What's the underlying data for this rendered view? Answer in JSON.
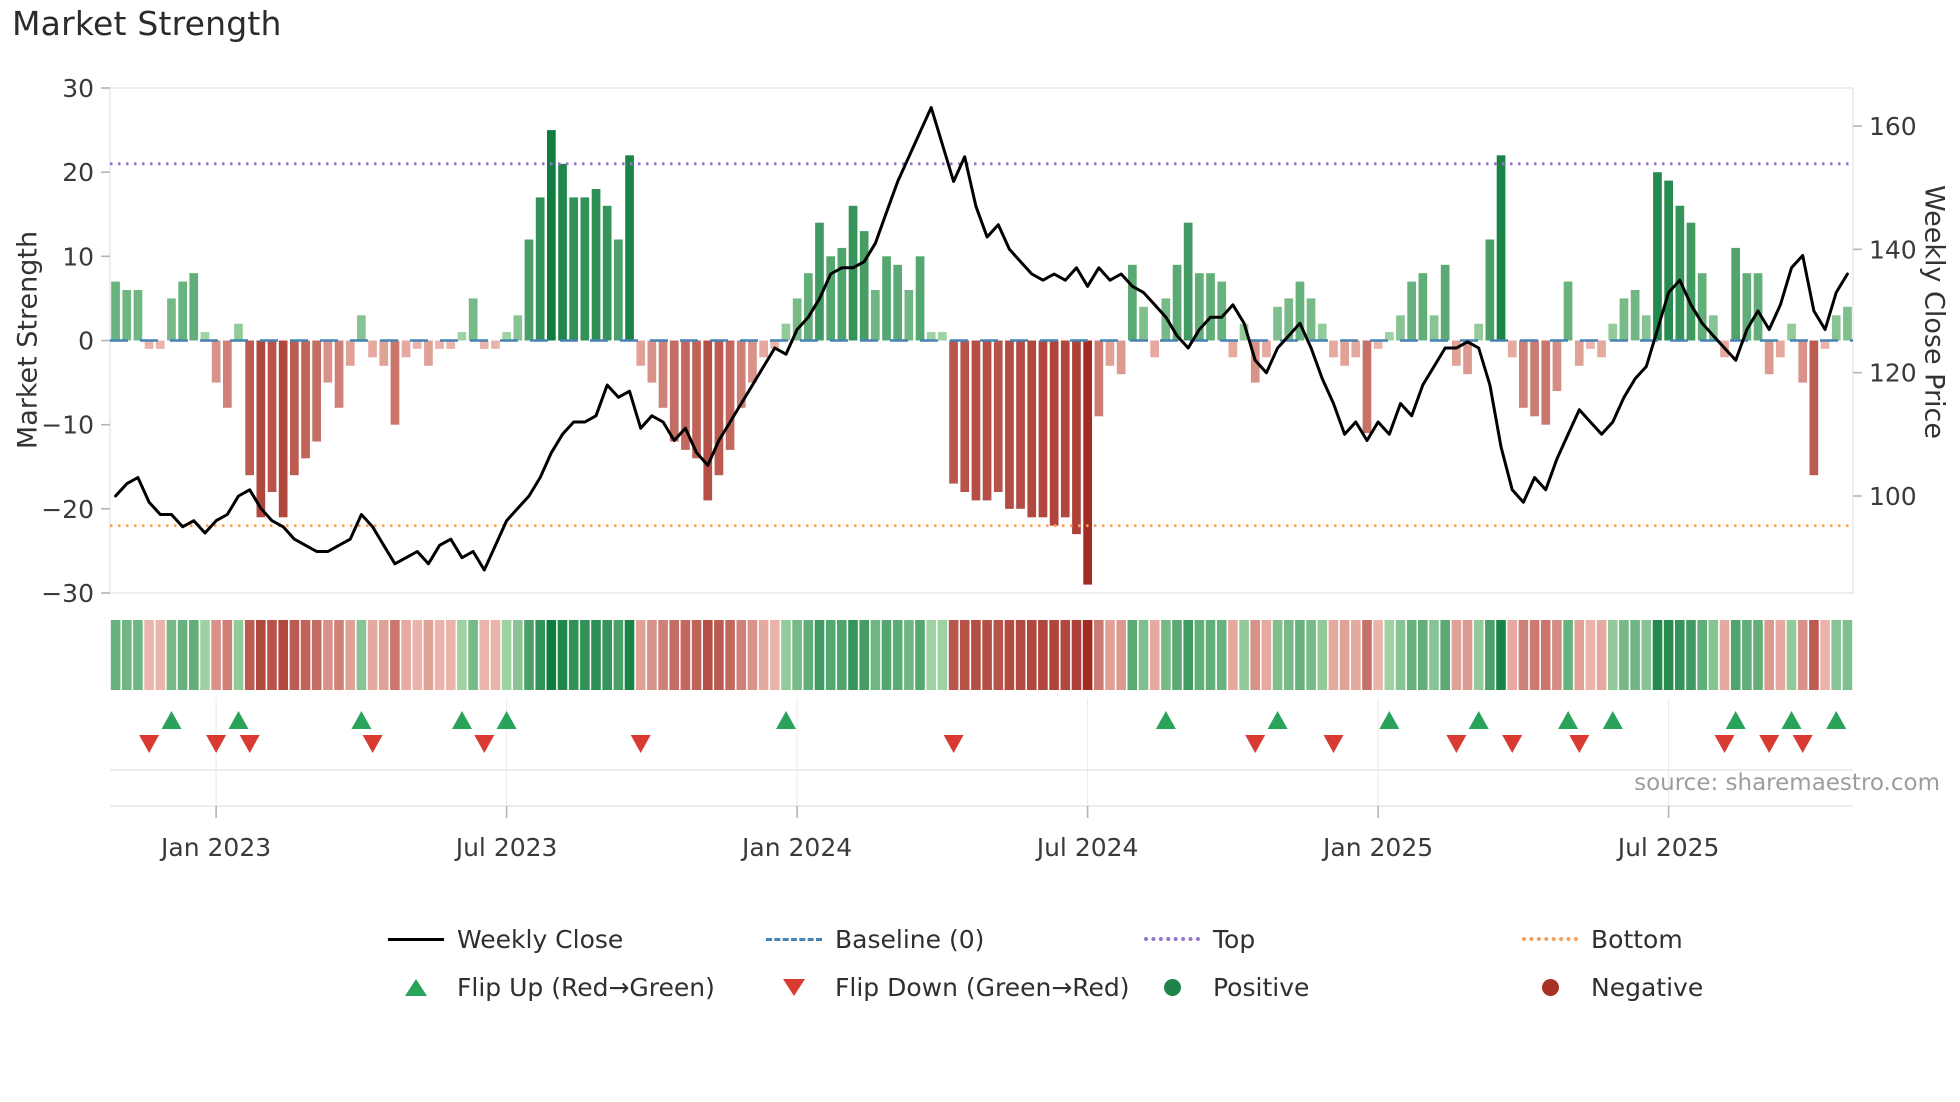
{
  "title": "Market Strength",
  "source": "source: sharemaestro.com",
  "axes": {
    "left_label": "Market Strength",
    "right_label": "Weekly Close Price",
    "left_ticks": [
      {
        "value": 30,
        "label": "30"
      },
      {
        "value": 20,
        "label": "20"
      },
      {
        "value": 10,
        "label": "10"
      },
      {
        "value": 0,
        "label": "0"
      },
      {
        "value": -10,
        "label": "−10"
      },
      {
        "value": -20,
        "label": "−20"
      },
      {
        "value": -30,
        "label": "−30"
      }
    ],
    "right_ticks": [
      {
        "value": 160,
        "label": "160"
      },
      {
        "value": 140,
        "label": "140"
      },
      {
        "value": 120,
        "label": "120"
      },
      {
        "value": 100,
        "label": "100"
      }
    ],
    "x_ticks": [
      {
        "index": 9,
        "label": "Jan 2023"
      },
      {
        "index": 35,
        "label": "Jul 2023"
      },
      {
        "index": 61,
        "label": "Jan 2024"
      },
      {
        "index": 87,
        "label": "Jul 2024"
      },
      {
        "index": 113,
        "label": "Jan 2025"
      },
      {
        "index": 139,
        "label": "Jul 2025"
      }
    ]
  },
  "legend": {
    "items": [
      {
        "label": "Weekly Close"
      },
      {
        "label": "Baseline (0)"
      },
      {
        "label": "Top"
      },
      {
        "label": "Bottom"
      },
      {
        "label": "Flip Up (Red→Green)"
      },
      {
        "label": "Flip Down (Green→Red)"
      },
      {
        "label": "Positive"
      },
      {
        "label": "Negative"
      }
    ]
  },
  "colors": {
    "line": "#000000",
    "baseline": "#4682b4",
    "top": "#9575cd",
    "bottom": "#f5a15b",
    "green_light": "#b7e0b4",
    "green_dark": "#0e7d3e",
    "red_light": "#f6c9c0",
    "red_dark": "#a22c22",
    "flip_up": "#2aa35a",
    "flip_down": "#d93a32",
    "positive": "#1e8449",
    "negative": "#a93226",
    "frame": "#e3e3e3",
    "grid": "#e4e4e4",
    "tick_text": "#3a3a3a"
  },
  "chart_data": {
    "type": "bar+line",
    "title": "Market Strength",
    "left_axis_label": "Market Strength",
    "right_axis_label": "Weekly Close Price",
    "frequency": "weekly",
    "x_tick_labels": [
      "Jan 2023",
      "Jul 2023",
      "Jan 2024",
      "Jul 2024",
      "Jan 2025",
      "Jul 2025"
    ],
    "left_axis_range": [
      -30,
      30
    ],
    "right_axis_range": [
      84,
      166
    ],
    "baseline": 0,
    "top_threshold": 21,
    "bottom_threshold": -22,
    "series": [
      {
        "name": "Market Strength",
        "type": "bar",
        "axis": "left",
        "values": [
          7,
          6,
          6,
          -1,
          -1,
          5,
          7,
          8,
          1,
          -5,
          -8,
          2,
          -16,
          -21,
          -18,
          -21,
          -16,
          -14,
          -12,
          -5,
          -8,
          -3,
          3,
          -2,
          -3,
          -10,
          -2,
          -1,
          -3,
          -1,
          -1,
          1,
          5,
          -1,
          -1,
          1,
          3,
          12,
          17,
          25,
          21,
          17,
          17,
          18,
          16,
          12,
          22,
          -3,
          -5,
          -8,
          -12,
          -13,
          -14,
          -19,
          -16,
          -13,
          -8,
          -5,
          -2,
          -1,
          2,
          5,
          8,
          14,
          10,
          11,
          16,
          13,
          6,
          10,
          9,
          6,
          10,
          1,
          1,
          -17,
          -18,
          -19,
          -19,
          -18,
          -20,
          -20,
          -21,
          -21,
          -22,
          -21,
          -23,
          -29,
          -9,
          -3,
          -4,
          9,
          4,
          -2,
          5,
          9,
          14,
          8,
          8,
          7,
          -2,
          2,
          -5,
          -2,
          4,
          5,
          7,
          5,
          2,
          -2,
          -3,
          -2,
          -11,
          -1,
          1,
          3,
          7,
          8,
          3,
          9,
          -3,
          -4,
          2,
          12,
          22,
          -2,
          -8,
          -9,
          -10,
          -6,
          7,
          -3,
          -1,
          -2,
          2,
          5,
          6,
          3,
          20,
          19,
          16,
          14,
          8,
          3,
          -2,
          11,
          8,
          8,
          -4,
          -2,
          2,
          -5,
          -16,
          -1,
          3,
          4
        ]
      },
      {
        "name": "Weekly Close",
        "type": "line",
        "axis": "right",
        "values": [
          100,
          102,
          103,
          99,
          97,
          97,
          95,
          96,
          94,
          96,
          97,
          100,
          101,
          98,
          96,
          95,
          93,
          92,
          91,
          91,
          92,
          93,
          97,
          95,
          92,
          89,
          90,
          91,
          89,
          92,
          93,
          90,
          91,
          88,
          92,
          96,
          98,
          100,
          103,
          107,
          110,
          112,
          112,
          113,
          118,
          116,
          117,
          111,
          113,
          112,
          109,
          111,
          107,
          105,
          109,
          112,
          115,
          118,
          121,
          124,
          123,
          127,
          129,
          132,
          136,
          137,
          137,
          138,
          141,
          146,
          151,
          155,
          159,
          163,
          157,
          151,
          155,
          147,
          142,
          144,
          140,
          138,
          136,
          135,
          136,
          135,
          137,
          134,
          137,
          135,
          136,
          134,
          133,
          131,
          129,
          126,
          124,
          127,
          129,
          129,
          131,
          128,
          122,
          120,
          124,
          126,
          128,
          124,
          119,
          115,
          110,
          112,
          109,
          112,
          110,
          115,
          113,
          118,
          121,
          124,
          124,
          125,
          124,
          118,
          108,
          101,
          99,
          103,
          101,
          106,
          110,
          114,
          112,
          110,
          112,
          116,
          119,
          121,
          127,
          133,
          135,
          131,
          128,
          126,
          124,
          122,
          127,
          130,
          127,
          131,
          137,
          139,
          130,
          127,
          133,
          136
        ]
      }
    ],
    "flip_up_indices": [
      5,
      11,
      22,
      31,
      35,
      60,
      94,
      104,
      114,
      122,
      130,
      134,
      145,
      150,
      154
    ],
    "flip_down_indices": [
      3,
      9,
      12,
      23,
      33,
      47,
      75,
      102,
      109,
      120,
      125,
      131,
      144,
      148,
      151
    ]
  }
}
